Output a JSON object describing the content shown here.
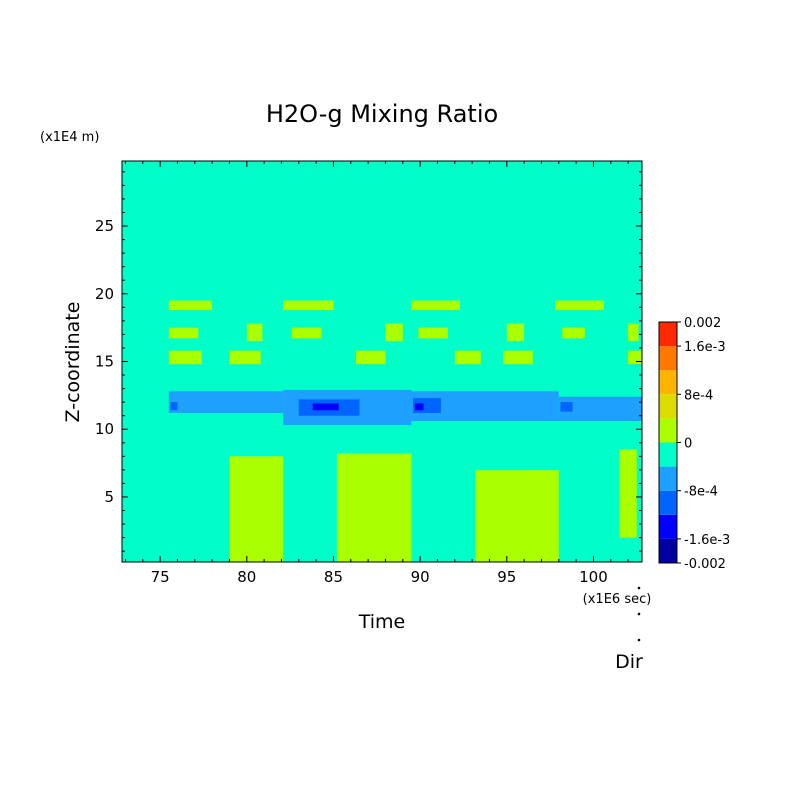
{
  "chart_data": {
    "type": "heatmap",
    "title": "H2O-g Mixing Ratio",
    "xlabel": "Time",
    "ylabel": "Z-coordinate",
    "x_unit": "(x1E6 sec)",
    "y_unit": "(x1E4 m)",
    "extra_label": "Dir",
    "xlim": [
      72.8,
      102.8
    ],
    "ylim": [
      0.2,
      29.8
    ],
    "x_ticks": [
      "75",
      "80",
      "85",
      "90",
      "95",
      "100"
    ],
    "x_tick_values": [
      75,
      80,
      85,
      90,
      95,
      100
    ],
    "y_ticks": [
      "5",
      "10",
      "15",
      "20",
      "25"
    ],
    "y_tick_values": [
      5,
      10,
      15,
      20,
      25
    ],
    "colorbar": {
      "range": [
        -0.002,
        0.002
      ],
      "tick_labels": [
        "0.002",
        "1.6e-3",
        "8e-4",
        "0",
        "-8e-4",
        "-1.6e-3",
        "-0.002"
      ],
      "tick_values": [
        0.002,
        0.0016,
        0.0008,
        0,
        -0.0008,
        -0.0016,
        -0.002
      ],
      "levels": [
        {
          "lo": -0.002,
          "hi": -0.0016,
          "color": "#0000a0"
        },
        {
          "lo": -0.0016,
          "hi": -0.0012,
          "color": "#0000ff"
        },
        {
          "lo": -0.0012,
          "hi": -0.0008,
          "color": "#0064ff"
        },
        {
          "lo": -0.0008,
          "hi": -0.0004,
          "color": "#1ea0ff"
        },
        {
          "lo": -0.0004,
          "hi": 0,
          "color": "#00ffc8"
        },
        {
          "lo": 0,
          "hi": 0.0004,
          "color": "#aaff00"
        },
        {
          "lo": 0.0004,
          "hi": 0.0008,
          "color": "#dcdc00"
        },
        {
          "lo": 0.0008,
          "hi": 0.0012,
          "color": "#ffb400"
        },
        {
          "lo": 0.0012,
          "hi": 0.0016,
          "color": "#ff7800"
        },
        {
          "lo": 0.0016,
          "hi": 0.002,
          "color": "#ff2800"
        },
        {
          "lo": 0.002,
          "hi": 0.0024,
          "color": "#ff4040"
        }
      ]
    },
    "background_color": "#00ffc8",
    "regions": [
      {
        "value": 0.0002,
        "x": [
          79.0,
          82.1
        ],
        "y": [
          0.2,
          8.0
        ]
      },
      {
        "value": 0.0002,
        "x": [
          85.2,
          89.5
        ],
        "y": [
          0.2,
          8.2
        ]
      },
      {
        "value": 0.0002,
        "x": [
          93.2,
          98.0
        ],
        "y": [
          0.2,
          7.0
        ]
      },
      {
        "value": 0.0002,
        "x": [
          101.5,
          102.5
        ],
        "y": [
          2.0,
          8.5
        ]
      },
      {
        "value": -0.0006,
        "x": [
          75.5,
          82.1
        ],
        "y": [
          11.2,
          12.8
        ]
      },
      {
        "value": -0.0006,
        "x": [
          82.1,
          89.5
        ],
        "y": [
          10.3,
          12.9
        ]
      },
      {
        "value": -0.0006,
        "x": [
          89.5,
          98.0
        ],
        "y": [
          10.6,
          12.8
        ]
      },
      {
        "value": -0.0006,
        "x": [
          98.0,
          102.8
        ],
        "y": [
          10.6,
          12.4
        ]
      },
      {
        "value": -0.001,
        "x": [
          83.0,
          86.5
        ],
        "y": [
          11.0,
          12.2
        ]
      },
      {
        "value": -0.001,
        "x": [
          89.6,
          91.2
        ],
        "y": [
          11.2,
          12.3
        ]
      },
      {
        "value": -0.001,
        "x": [
          75.6,
          76.0
        ],
        "y": [
          11.4,
          12.0
        ]
      },
      {
        "value": -0.001,
        "x": [
          98.1,
          98.8
        ],
        "y": [
          11.3,
          12.0
        ]
      },
      {
        "value": -0.0014,
        "x": [
          83.8,
          85.3
        ],
        "y": [
          11.4,
          11.9
        ]
      },
      {
        "value": -0.0014,
        "x": [
          89.7,
          90.2
        ],
        "y": [
          11.4,
          11.9
        ]
      },
      {
        "value": 0.0002,
        "x": [
          75.5,
          78.0
        ],
        "y": [
          18.8,
          19.5
        ]
      },
      {
        "value": 0.0002,
        "x": [
          82.1,
          85.0
        ],
        "y": [
          18.8,
          19.5
        ]
      },
      {
        "value": 0.0002,
        "x": [
          89.5,
          92.3
        ],
        "y": [
          18.8,
          19.5
        ]
      },
      {
        "value": 0.0002,
        "x": [
          97.8,
          100.6
        ],
        "y": [
          18.8,
          19.5
        ]
      },
      {
        "value": 0.0002,
        "x": [
          75.5,
          77.2
        ],
        "y": [
          16.7,
          17.5
        ]
      },
      {
        "value": 0.0002,
        "x": [
          82.6,
          84.3
        ],
        "y": [
          16.7,
          17.5
        ]
      },
      {
        "value": 0.0002,
        "x": [
          89.9,
          91.6
        ],
        "y": [
          16.7,
          17.5
        ]
      },
      {
        "value": 0.0002,
        "x": [
          98.2,
          99.5
        ],
        "y": [
          16.7,
          17.5
        ]
      },
      {
        "value": 0.0002,
        "x": [
          75.5,
          77.4
        ],
        "y": [
          14.8,
          15.8
        ]
      },
      {
        "value": 0.0002,
        "x": [
          79.0,
          80.8
        ],
        "y": [
          14.8,
          15.8
        ]
      },
      {
        "value": 0.0002,
        "x": [
          86.3,
          88.0
        ],
        "y": [
          14.8,
          15.8
        ]
      },
      {
        "value": 0.0002,
        "x": [
          92.0,
          93.5
        ],
        "y": [
          14.8,
          15.8
        ]
      },
      {
        "value": 0.0002,
        "x": [
          94.8,
          96.5
        ],
        "y": [
          14.8,
          15.8
        ]
      },
      {
        "value": 0.0002,
        "x": [
          102.0,
          102.8
        ],
        "y": [
          14.8,
          15.8
        ]
      },
      {
        "value": 0.0002,
        "x": [
          80.0,
          80.9
        ],
        "y": [
          16.5,
          17.8
        ]
      },
      {
        "value": 0.0002,
        "x": [
          88.0,
          89.0
        ],
        "y": [
          16.5,
          17.8
        ]
      },
      {
        "value": 0.0002,
        "x": [
          95.0,
          96.0
        ],
        "y": [
          16.5,
          17.8
        ]
      },
      {
        "value": 0.0002,
        "x": [
          102.0,
          102.6
        ],
        "y": [
          16.5,
          17.8
        ]
      }
    ],
    "grid": false
  }
}
